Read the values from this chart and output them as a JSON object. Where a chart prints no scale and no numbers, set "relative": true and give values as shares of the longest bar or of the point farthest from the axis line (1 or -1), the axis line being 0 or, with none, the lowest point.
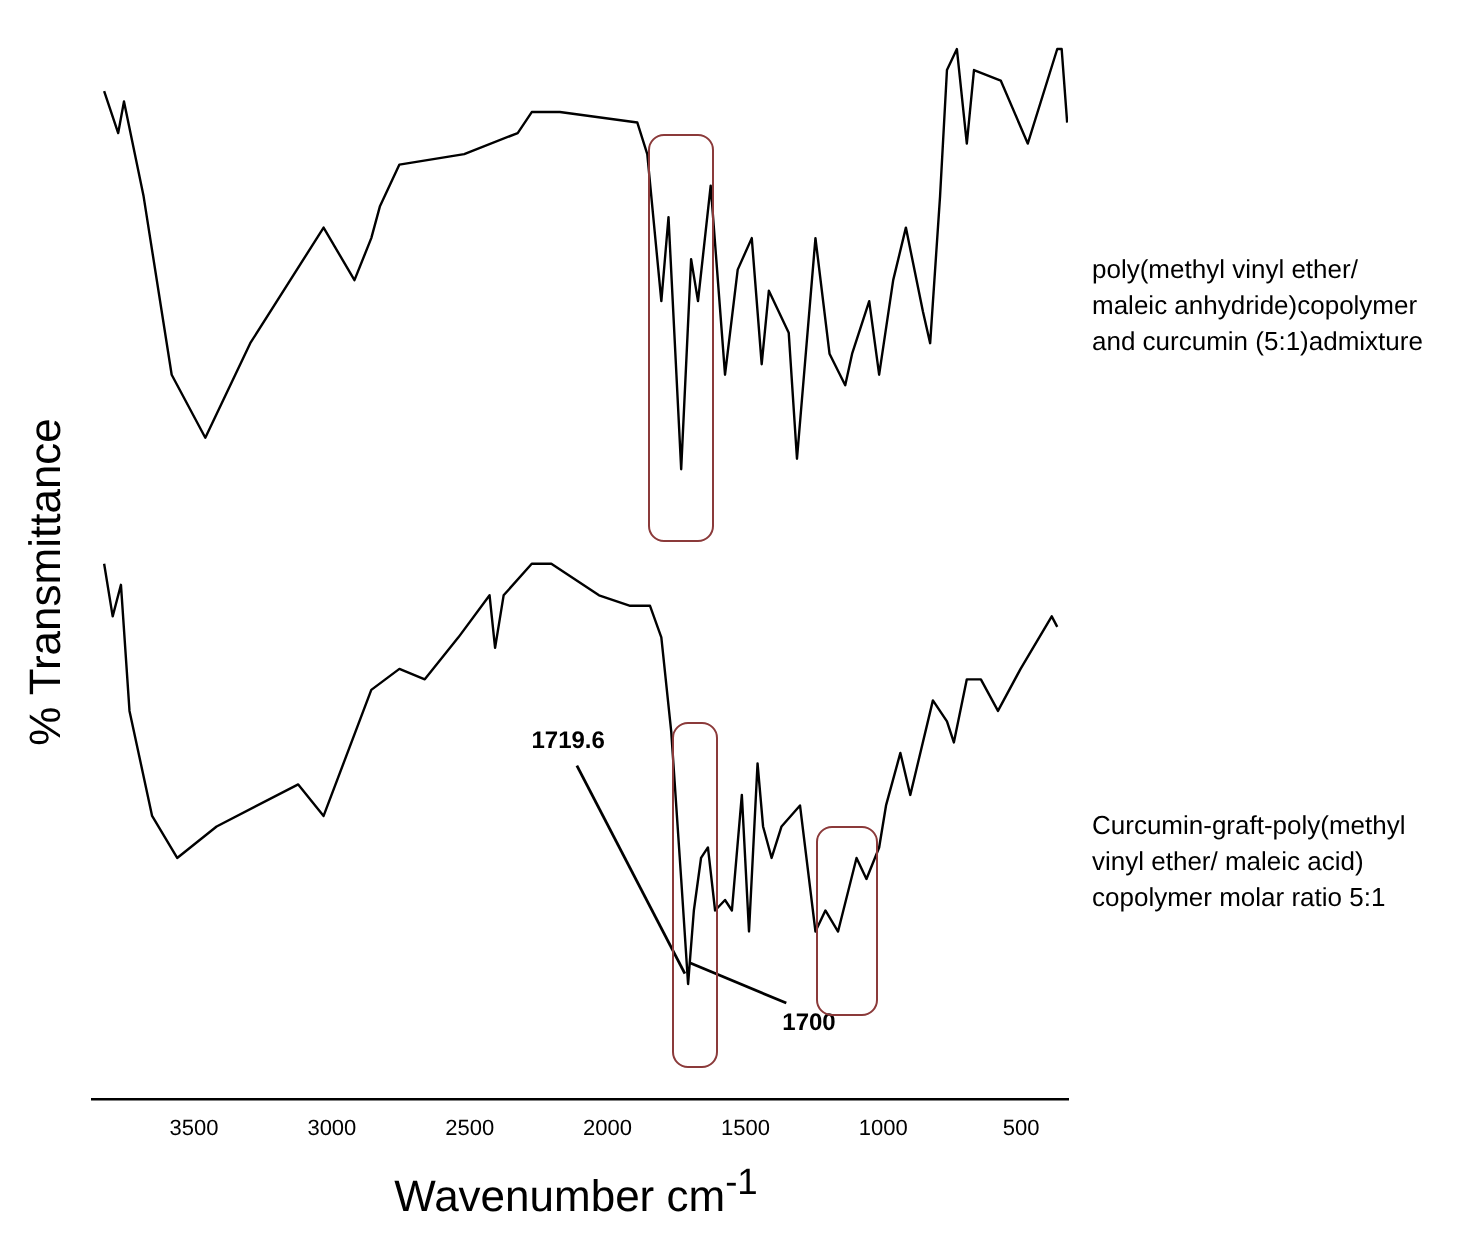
{
  "chart_data": {
    "type": "line",
    "ylabel": "% Transmittance",
    "xlabel": "Wavenumber cm$^{-1}$",
    "relative": true,
    "marker": "none",
    "xlim": [
      3870,
      330
    ],
    "xticks": [
      3500,
      3000,
      2500,
      2000,
      1500,
      1000,
      500
    ],
    "annotations": [
      "poly(methyl vinyl ether/ maleic anhydride)copolymer and curcumin (5:1)admixture",
      "Curcumin-graft-poly(methyl vinyl ether/ maleic acid) copolymer molar ratio 5:1",
      {
        "text": "1719.6",
        "x": 1719.6,
        "y": 0.12
      },
      {
        "text": "1700",
        "x": 1700,
        "y": 0.13
      }
    ],
    "series": [
      {
        "color": "#000000",
        "x": [
          3826,
          3775,
          3754,
          3683,
          3581,
          3459,
          3296,
          3030,
          2918,
          2857,
          2826,
          2755,
          2520,
          2326,
          2275,
          2173,
          1892,
          1856,
          1805,
          1779,
          1733,
          1697,
          1672,
          1626,
          1574,
          1528,
          1477,
          1441,
          1415,
          1379,
          1343,
          1313,
          1246,
          1195,
          1138,
          1113,
          1051,
          1015,
          964,
          918,
          856,
          830,
          794,
          769,
          733,
          697,
          671,
          574,
          476,
          369,
          353,
          333
        ],
        "values": [
          0.96,
          0.92,
          0.95,
          0.86,
          0.69,
          0.63,
          0.72,
          0.83,
          0.78,
          0.82,
          0.85,
          0.89,
          0.9,
          0.92,
          0.94,
          0.94,
          0.93,
          0.9,
          0.76,
          0.84,
          0.6,
          0.8,
          0.76,
          0.87,
          0.69,
          0.79,
          0.82,
          0.7,
          0.77,
          0.75,
          0.73,
          0.61,
          0.82,
          0.71,
          0.68,
          0.71,
          0.76,
          0.69,
          0.78,
          0.83,
          0.75,
          0.72,
          0.86,
          0.98,
          1.0,
          0.91,
          0.98,
          0.97,
          0.91,
          1.0,
          1.0,
          0.93
        ]
      },
      {
        "color": "#000000",
        "x": [
          3826,
          3795,
          3765,
          3734,
          3652,
          3561,
          3418,
          3122,
          3030,
          2857,
          2755,
          2663,
          2541,
          2428,
          2408,
          2377,
          2275,
          2204,
          2031,
          1918,
          1846,
          1805,
          1769,
          1733,
          1708,
          1687,
          1661,
          1636,
          1610,
          1574,
          1549,
          1513,
          1487,
          1456,
          1436,
          1405,
          1369,
          1302,
          1246,
          1210,
          1164,
          1097,
          1061,
          1015,
          990,
          938,
          902,
          820,
          769,
          744,
          697,
          646,
          584,
          502,
          389,
          369
        ],
        "values": [
          0.51,
          0.46,
          0.49,
          0.37,
          0.27,
          0.23,
          0.26,
          0.3,
          0.27,
          0.39,
          0.41,
          0.4,
          0.44,
          0.48,
          0.43,
          0.48,
          0.51,
          0.51,
          0.48,
          0.47,
          0.47,
          0.44,
          0.35,
          0.21,
          0.11,
          0.18,
          0.23,
          0.24,
          0.18,
          0.19,
          0.18,
          0.29,
          0.16,
          0.32,
          0.26,
          0.23,
          0.26,
          0.28,
          0.16,
          0.18,
          0.16,
          0.23,
          0.21,
          0.24,
          0.28,
          0.33,
          0.29,
          0.38,
          0.36,
          0.34,
          0.4,
          0.4,
          0.37,
          0.41,
          0.46,
          0.45
        ]
      }
    ]
  }
}
